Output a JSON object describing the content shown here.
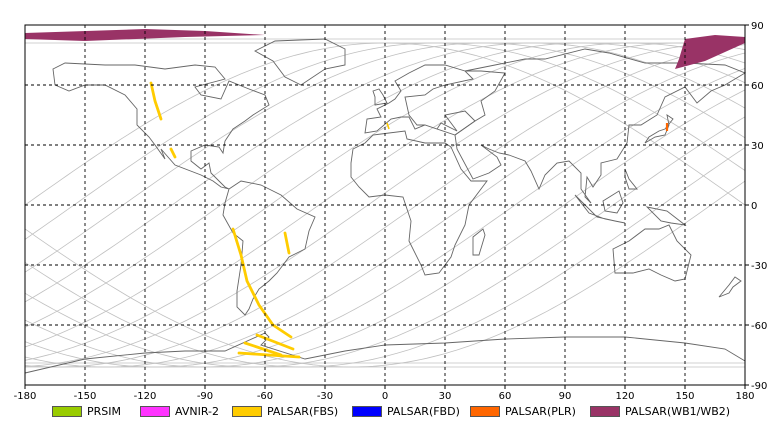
{
  "map": {
    "x_ticks": [
      -180,
      -150,
      -120,
      -90,
      -60,
      -30,
      0,
      30,
      60,
      90,
      120,
      150,
      180
    ],
    "y_ticks": [
      90,
      60,
      30,
      0,
      -30,
      -60,
      -90
    ],
    "xlim": [
      -180,
      180
    ],
    "ylim": [
      -90,
      90
    ],
    "grid": true,
    "colors": {
      "frame": "#000000",
      "grid": "#000000",
      "coastline": "#666666",
      "orbit": "#c0c0c0"
    }
  },
  "legend": [
    {
      "label": "PRSIM",
      "color": "#99cc00"
    },
    {
      "label": "AVNIR-2",
      "color": "#ff33ff"
    },
    {
      "label": "PALSAR(FBS)",
      "color": "#ffcc00"
    },
    {
      "label": "PALSAR(FBD)",
      "color": "#0000ff"
    },
    {
      "label": "PALSAR(PLR)",
      "color": "#ff6600"
    },
    {
      "label": "PALSAR(WB1/WB2)",
      "color": "#993366"
    }
  ]
}
